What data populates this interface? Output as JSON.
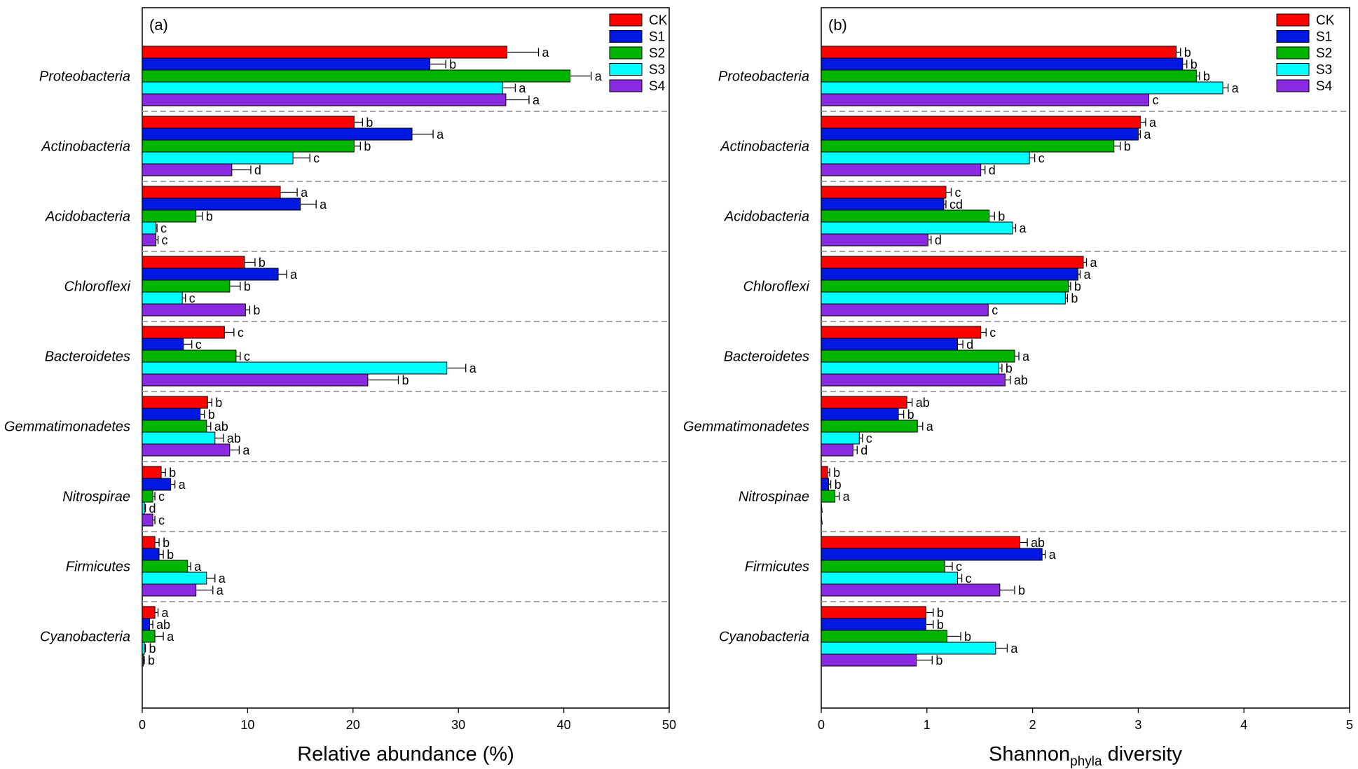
{
  "colors": {
    "CK": "#ff0000",
    "S1": "#0018e0",
    "S2": "#00b400",
    "S3": "#00ffff",
    "S4": "#8a2be2",
    "separator": "#888888",
    "axis": "#000000"
  },
  "chart_data": [
    {
      "type": "bar",
      "orientation": "horizontal",
      "panel_label": "(a)",
      "xlabel": "Relative abundance (%)",
      "xlabel_parts": {
        "main": "Relative abundance (%)",
        "sub": "",
        "after": ""
      },
      "xlim": [
        0,
        50
      ],
      "xticks": [
        "0",
        "10",
        "20",
        "30",
        "40",
        "50"
      ],
      "legend_position": "top-right",
      "categories": [
        "Proteobacteria",
        "Actinobacteria",
        "Acidobacteria",
        "Chloroflexi",
        "Bacteroidetes",
        "Gemmatimonadetes",
        "Nitrospirae",
        "Firmicutes",
        "Cyanobacteria"
      ],
      "series": [
        {
          "name": "CK",
          "values": [
            34.6,
            20.1,
            13.1,
            9.7,
            7.8,
            6.2,
            1.8,
            1.2,
            1.2
          ],
          "errors": [
            3.0,
            0.8,
            1.6,
            1.0,
            0.9,
            0.4,
            0.4,
            0.4,
            0.3
          ],
          "letters": [
            "a",
            "b",
            "a",
            "b",
            "c",
            "b",
            "b",
            "b",
            "a"
          ]
        },
        {
          "name": "S1",
          "values": [
            27.3,
            25.6,
            15.0,
            12.9,
            3.9,
            5.5,
            2.7,
            1.6,
            0.7
          ],
          "errors": [
            1.5,
            2.0,
            1.5,
            0.8,
            0.8,
            0.4,
            0.4,
            0.4,
            0.3
          ],
          "letters": [
            "b",
            "a",
            "a",
            "a",
            "c",
            "b",
            "a",
            "b",
            "ab"
          ]
        },
        {
          "name": "S2",
          "values": [
            40.6,
            20.1,
            5.1,
            8.3,
            8.9,
            6.1,
            1.0,
            4.3,
            1.2
          ],
          "errors": [
            2.0,
            0.6,
            0.6,
            1.0,
            0.4,
            0.4,
            0.2,
            0.3,
            0.8
          ],
          "letters": [
            "a",
            "b",
            "b",
            "b",
            "c",
            "ab",
            "c",
            "a",
            "a"
          ]
        },
        {
          "name": "S3",
          "values": [
            34.2,
            14.3,
            1.3,
            3.8,
            28.9,
            6.9,
            0.2,
            6.1,
            0.2
          ],
          "errors": [
            1.2,
            1.6,
            0.1,
            0.3,
            1.8,
            0.8,
            0.1,
            0.8,
            0.1
          ],
          "letters": [
            "a",
            "c",
            "c",
            "c",
            "a",
            "ab",
            "d",
            "a",
            "b"
          ]
        },
        {
          "name": "S4",
          "values": [
            34.5,
            8.5,
            1.3,
            9.8,
            21.4,
            8.3,
            1.0,
            5.1,
            0.1
          ],
          "errors": [
            2.2,
            1.8,
            0.2,
            0.4,
            2.9,
            0.9,
            0.2,
            1.6,
            0.1
          ],
          "letters": [
            "a",
            "d",
            "c",
            "b",
            "b",
            "a",
            "c",
            "a",
            "b"
          ]
        }
      ]
    },
    {
      "type": "bar",
      "orientation": "horizontal",
      "panel_label": "(b)",
      "xlabel": "Shannonphyla diversity",
      "xlabel_parts": {
        "main": "Shannon",
        "sub": "phyla",
        "after": " diversity"
      },
      "xlim": [
        0,
        5
      ],
      "xticks": [
        "0",
        "1",
        "2",
        "3",
        "4",
        "5"
      ],
      "legend_position": "top-right",
      "categories": [
        "Proteobacteria",
        "Actinobacteria",
        "Acidobacteria",
        "Chloroflexi",
        "Bacteroidetes",
        "Gemmatimonadetes",
        "Nitrospinae",
        "Firmicutes",
        "Cyanobacteria"
      ],
      "series": [
        {
          "name": "CK",
          "values": [
            3.36,
            3.02,
            1.18,
            2.48,
            1.51,
            0.81,
            0.06,
            1.88,
            0.99
          ],
          "errors": [
            0.04,
            0.05,
            0.05,
            0.03,
            0.05,
            0.05,
            0.02,
            0.07,
            0.07
          ],
          "letters": [
            "b",
            "a",
            "c",
            "a",
            "c",
            "ab",
            "b",
            "ab",
            "b"
          ]
        },
        {
          "name": "S1",
          "values": [
            3.42,
            3.0,
            1.16,
            2.43,
            1.29,
            0.73,
            0.07,
            2.09,
            0.99
          ],
          "errors": [
            0.04,
            0.02,
            0.02,
            0.02,
            0.05,
            0.05,
            0.02,
            0.03,
            0.07
          ],
          "letters": [
            "b",
            "a",
            "cd",
            "a",
            "d",
            "b",
            "b",
            "a",
            "b"
          ]
        },
        {
          "name": "S2",
          "values": [
            3.55,
            2.77,
            1.59,
            2.34,
            1.83,
            0.91,
            0.13,
            1.17,
            1.19
          ],
          "errors": [
            0.03,
            0.06,
            0.05,
            0.02,
            0.04,
            0.05,
            0.04,
            0.07,
            0.13
          ],
          "letters": [
            "b",
            "b",
            "b",
            "b",
            "a",
            "a",
            "a",
            "c",
            "b"
          ]
        },
        {
          "name": "S3",
          "values": [
            3.8,
            1.97,
            1.81,
            2.31,
            1.68,
            0.36,
            0.0,
            1.29,
            1.65
          ],
          "errors": [
            0.05,
            0.05,
            0.03,
            0.02,
            0.03,
            0.03,
            0.0,
            0.04,
            0.11
          ],
          "letters": [
            "a",
            "c",
            "a",
            "b",
            "b",
            "c",
            "",
            "c",
            "a"
          ]
        },
        {
          "name": "S4",
          "values": [
            3.1,
            1.51,
            1.01,
            1.58,
            1.74,
            0.3,
            0.0,
            1.69,
            0.9
          ],
          "errors": [
            0.0,
            0.04,
            0.03,
            0.0,
            0.05,
            0.04,
            0.0,
            0.14,
            0.15
          ],
          "letters": [
            "c",
            "d",
            "d",
            "c",
            "ab",
            "d",
            "",
            "b",
            "b"
          ]
        }
      ]
    }
  ]
}
